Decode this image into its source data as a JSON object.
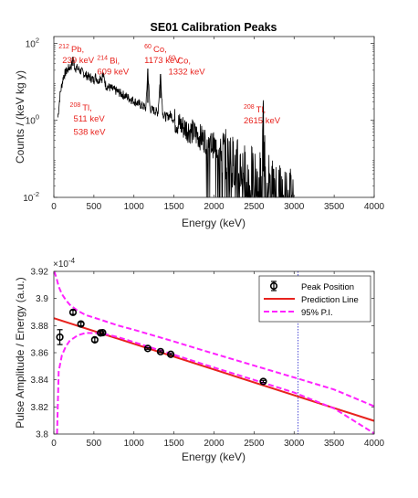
{
  "colors": {
    "annotation": "#e8231e",
    "spectrum": "#000000",
    "prediction": "#e8231e",
    "pi": "#ff22ff",
    "threshold": "#2222cc",
    "axis": "#262626"
  },
  "chart_data": [
    {
      "type": "line",
      "title": "SE01 Calibration Peaks",
      "xlabel": "Energy (keV)",
      "ylabel": "Counts / (keV kg y)",
      "y_scale": "log",
      "xlim": [
        0,
        4000
      ],
      "ylim": [
        0.01,
        150
      ],
      "x_ticks": [
        "0",
        "500",
        "1000",
        "1500",
        "2000",
        "2500",
        "3000",
        "3500",
        "4000"
      ],
      "y_ticks": [
        {
          "base": "10",
          "exp": "-2"
        },
        {
          "base": "10",
          "exp": "0"
        },
        {
          "base": "10",
          "exp": "2"
        }
      ],
      "spectrum": {
        "x": [
          50,
          80,
          120,
          150,
          180,
          200,
          220,
          239,
          260,
          300,
          350,
          400,
          450,
          500,
          511,
          540,
          560,
          583,
          600,
          609,
          650,
          700,
          800,
          900,
          1000,
          1100,
          1150,
          1173,
          1200,
          1250,
          1300,
          1332,
          1360,
          1400,
          1460,
          1500,
          1600,
          1700,
          1800,
          1900,
          2000,
          2100,
          2200,
          2300,
          2400,
          2500,
          2550,
          2600,
          2615,
          2640,
          2700,
          2800,
          3000
        ],
        "y": [
          1.2,
          5,
          14,
          18,
          22,
          24,
          26,
          45,
          24,
          22,
          18,
          15,
          13,
          11,
          14,
          12,
          10,
          15,
          11,
          17,
          8,
          7,
          5.5,
          4.2,
          3.2,
          2.4,
          2.1,
          22,
          2.0,
          1.8,
          1.6,
          16,
          1.5,
          1.2,
          1.4,
          1.0,
          0.7,
          0.55,
          0.4,
          0.3,
          0.22,
          0.15,
          0.1,
          0.07,
          0.05,
          0.04,
          0.03,
          0.05,
          1.0,
          0.05,
          0.03,
          0.02,
          0.012
        ]
      },
      "annotations": [
        {
          "x": 60,
          "y": 60,
          "isotope": {
            "mass": "212",
            "symbol": "Pb,"
          },
          "energy": "239 keV"
        },
        {
          "x": 540,
          "y": 30,
          "isotope": {
            "mass": "214",
            "symbol": "Bi,"
          },
          "energy": "609 keV"
        },
        {
          "x": 1130,
          "y": 60,
          "isotope": {
            "mass": "60",
            "symbol": "Co,"
          },
          "energy": "1173 keV"
        },
        {
          "x": 1430,
          "y": 30,
          "isotope": {
            "mass": "60",
            "symbol": "Co,"
          },
          "energy": "1332 keV"
        },
        {
          "x": 200,
          "y": 1.8,
          "isotope": {
            "mass": "208",
            "symbol": "Tl,"
          },
          "energy": "511 keV"
        },
        {
          "x": 200,
          "y": 0.42,
          "isotope": null,
          "energy": "538 keV"
        },
        {
          "x": 2370,
          "y": 1.6,
          "isotope": {
            "mass": "208",
            "symbol": "Tl,"
          },
          "energy": "2615 keV"
        }
      ]
    },
    {
      "type": "scatter",
      "title": "",
      "xlabel": "Energy (keV)",
      "ylabel": "Pulse Amplitude / Energy (a.u.)",
      "y_multiplier": {
        "base": "×10",
        "exp": "-4"
      },
      "xlim": [
        0,
        4000
      ],
      "ylim": [
        3.8,
        3.92
      ],
      "x_ticks": [
        "0",
        "500",
        "1000",
        "1500",
        "2000",
        "2500",
        "3000",
        "3500",
        "4000"
      ],
      "y_ticks": [
        "3.8",
        "3.82",
        "3.84",
        "3.86",
        "3.88",
        "3.9",
        "3.92"
      ],
      "legend_position": "top-right",
      "legend": [
        "Peak Position",
        "Prediction Line",
        "95% P.I."
      ],
      "peak_positions": [
        {
          "x": 75,
          "y": 3.8715,
          "err": 0.0055
        },
        {
          "x": 239,
          "y": 3.8898,
          "err": 0.0015
        },
        {
          "x": 338,
          "y": 3.8812,
          "err": 0.0012
        },
        {
          "x": 511,
          "y": 3.8695,
          "err": 0.0015
        },
        {
          "x": 583,
          "y": 3.8746,
          "err": 0.001
        },
        {
          "x": 609,
          "y": 3.8748,
          "err": 0.0008
        },
        {
          "x": 1173,
          "y": 3.8631,
          "err": 0.0006
        },
        {
          "x": 1332,
          "y": 3.8608,
          "err": 0.0006
        },
        {
          "x": 1460,
          "y": 3.8588,
          "err": 0.0006
        },
        {
          "x": 2615,
          "y": 3.8388,
          "err": 0.0008
        }
      ],
      "prediction_line": {
        "x": [
          0,
          4000
        ],
        "y": [
          3.8855,
          3.8097
        ]
      },
      "pi_upper": {
        "x": [
          5,
          30,
          60,
          100,
          150,
          200,
          300,
          400,
          600,
          800,
          1000,
          1300,
          1500,
          1800,
          2000,
          2500,
          3000,
          3500,
          4000
        ],
        "y": [
          3.92,
          3.9158,
          3.9088,
          3.9033,
          3.8988,
          3.8954,
          3.8909,
          3.8878,
          3.884,
          3.8801,
          3.8769,
          3.8717,
          3.8683,
          3.8628,
          3.8593,
          3.8505,
          3.8417,
          3.8328,
          3.8205
        ]
      },
      "pi_lower": {
        "x": [
          40,
          60,
          100,
          150,
          200,
          300,
          400,
          600,
          800,
          1000,
          1300,
          1500,
          1800,
          2000,
          2500,
          3000,
          3500,
          4000
        ],
        "y": [
          3.8,
          3.8462,
          3.8581,
          3.8647,
          3.8689,
          3.8729,
          3.8746,
          3.8743,
          3.8715,
          3.8678,
          3.8622,
          3.8585,
          3.8528,
          3.8491,
          3.8399,
          3.8306,
          3.8189,
          3.8005
        ]
      },
      "threshold_x": 3050
    }
  ]
}
